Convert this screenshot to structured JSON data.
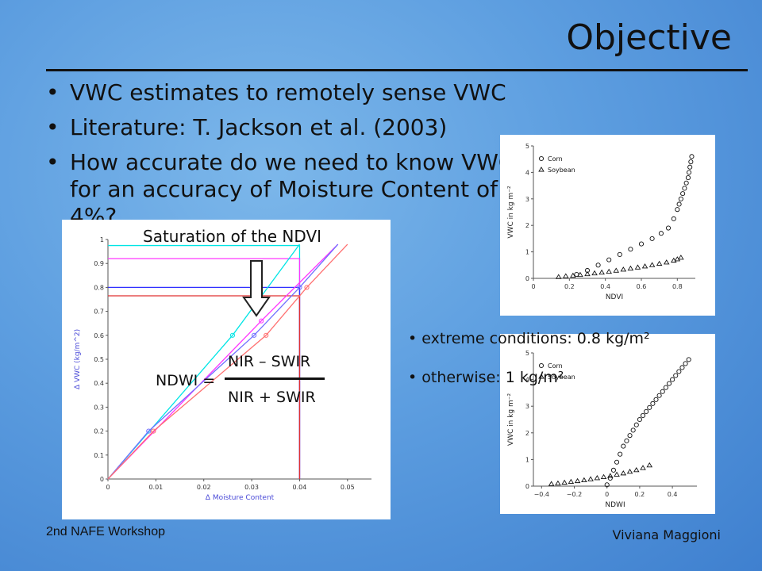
{
  "slide": {
    "title": "Objective",
    "bullets": [
      "VWC estimates to remotely sense VWC",
      "Literature: T. Jackson et al. (2003)",
      "How accurate do we need to know VWC for an accuracy of Moisture Content of 4%?"
    ],
    "saturation_label": "Saturation of the NDVI",
    "ndwi": {
      "lhs": "NDWI =",
      "numerator": "NIR – SWIR",
      "denominator": "NIR + SWIR"
    },
    "notes": [
      "extreme conditions: 0.8 kg/m²",
      "otherwise: 1 kg/m²"
    ],
    "footer_left": "2nd NAFE Workshop",
    "footer_right": "Viviana Maggioni"
  },
  "chart_data": [
    {
      "type": "line",
      "xlabel": "Δ Moisture Content",
      "ylabel": "Δ VWC (kg/m^2)",
      "xlim": [
        0,
        0.055
      ],
      "ylim": [
        0,
        1
      ],
      "xticks": [
        "0",
        "0.01",
        "0.02",
        "0.03",
        "0.04",
        "0.05"
      ],
      "yticks": [
        "0",
        "0.1",
        "0.2",
        "0.3",
        "0.4",
        "0.5",
        "0.6",
        "0.7",
        "0.8",
        "0.9",
        "1"
      ],
      "series": [
        {
          "color": "#00e5e5",
          "x": [
            0,
            0.026,
            0.04
          ],
          "y": [
            0,
            0.6,
            0.98
          ]
        },
        {
          "color": "#ff33ff",
          "x": [
            0,
            0.032,
            0.048
          ],
          "y": [
            0,
            0.66,
            0.98
          ]
        },
        {
          "color": "#7070ff",
          "x": [
            0,
            0.0085,
            0.0305,
            0.04,
            0.048
          ],
          "y": [
            0,
            0.2,
            0.6,
            0.8,
            0.98
          ]
        },
        {
          "color": "#ff7070",
          "x": [
            0,
            0.0095,
            0.033,
            0.0415,
            0.05
          ],
          "y": [
            0,
            0.2,
            0.6,
            0.8,
            0.98
          ]
        }
      ],
      "guides": [
        {
          "color": "#00e5e5",
          "y": 0.975,
          "x": 0.04
        },
        {
          "color": "#ff33ff",
          "y": 0.92,
          "x": 0.04
        },
        {
          "color": "#3030ff",
          "y": 0.8,
          "x": 0.04
        },
        {
          "color": "#e03030",
          "y": 0.765,
          "x": 0.04
        }
      ]
    },
    {
      "type": "scatter",
      "xlabel": "NDVI",
      "ylabel": "VWC in kg m⁻²",
      "xlim": [
        0,
        0.9
      ],
      "ylim": [
        0,
        5
      ],
      "xticks": [
        "0",
        "0.2",
        "0.4",
        "0.6",
        "0.8"
      ],
      "yticks": [
        "0",
        "1",
        "2",
        "3",
        "4",
        "5"
      ],
      "legend": [
        "Corn",
        "Soybean"
      ],
      "series": [
        {
          "name": "Corn",
          "marker": "circle",
          "x": [
            0.24,
            0.3,
            0.36,
            0.42,
            0.48,
            0.54,
            0.6,
            0.66,
            0.71,
            0.75,
            0.78,
            0.8,
            0.81,
            0.82,
            0.83,
            0.84,
            0.85,
            0.86,
            0.865,
            0.87,
            0.875,
            0.88
          ],
          "y": [
            0.15,
            0.3,
            0.5,
            0.7,
            0.9,
            1.1,
            1.3,
            1.5,
            1.7,
            1.9,
            2.25,
            2.6,
            2.8,
            3.0,
            3.2,
            3.4,
            3.6,
            3.8,
            4.0,
            4.2,
            4.4,
            4.6
          ]
        },
        {
          "name": "Soybean",
          "marker": "triangle",
          "x": [
            0.14,
            0.18,
            0.22,
            0.26,
            0.3,
            0.34,
            0.38,
            0.42,
            0.46,
            0.5,
            0.54,
            0.58,
            0.62,
            0.66,
            0.7,
            0.74,
            0.78,
            0.8,
            0.82
          ],
          "y": [
            0.05,
            0.08,
            0.1,
            0.13,
            0.16,
            0.19,
            0.22,
            0.25,
            0.29,
            0.33,
            0.37,
            0.41,
            0.45,
            0.5,
            0.55,
            0.6,
            0.67,
            0.72,
            0.78
          ]
        }
      ]
    },
    {
      "type": "scatter",
      "xlabel": "NDWI",
      "ylabel": "VWC in kg m⁻²",
      "xlim": [
        -0.45,
        0.55
      ],
      "ylim": [
        0,
        5
      ],
      "xticks": [
        "−0.4",
        "−0.2",
        "0",
        "0.2",
        "0.4"
      ],
      "yticks": [
        "0",
        "1",
        "2",
        "3",
        "4",
        "5"
      ],
      "legend": [
        "Corn",
        "Soybean"
      ],
      "series": [
        {
          "name": "Corn",
          "marker": "circle",
          "x": [
            0.0,
            0.02,
            0.04,
            0.06,
            0.08,
            0.1,
            0.12,
            0.14,
            0.16,
            0.18,
            0.2,
            0.22,
            0.24,
            0.26,
            0.28,
            0.3,
            0.32,
            0.34,
            0.36,
            0.38,
            0.4,
            0.42,
            0.44,
            0.46,
            0.48,
            0.5
          ],
          "y": [
            0.05,
            0.3,
            0.6,
            0.9,
            1.2,
            1.5,
            1.7,
            1.9,
            2.1,
            2.3,
            2.5,
            2.65,
            2.8,
            2.95,
            3.1,
            3.25,
            3.4,
            3.55,
            3.7,
            3.85,
            4.0,
            4.15,
            4.3,
            4.45,
            4.6,
            4.75
          ]
        },
        {
          "name": "Soybean",
          "marker": "triangle",
          "x": [
            -0.34,
            -0.3,
            -0.26,
            -0.22,
            -0.18,
            -0.14,
            -0.1,
            -0.06,
            -0.02,
            0.02,
            0.06,
            0.1,
            0.14,
            0.18,
            0.22,
            0.26
          ],
          "y": [
            0.08,
            0.1,
            0.13,
            0.16,
            0.19,
            0.22,
            0.26,
            0.3,
            0.34,
            0.38,
            0.43,
            0.48,
            0.54,
            0.6,
            0.68,
            0.78
          ]
        }
      ]
    }
  ]
}
